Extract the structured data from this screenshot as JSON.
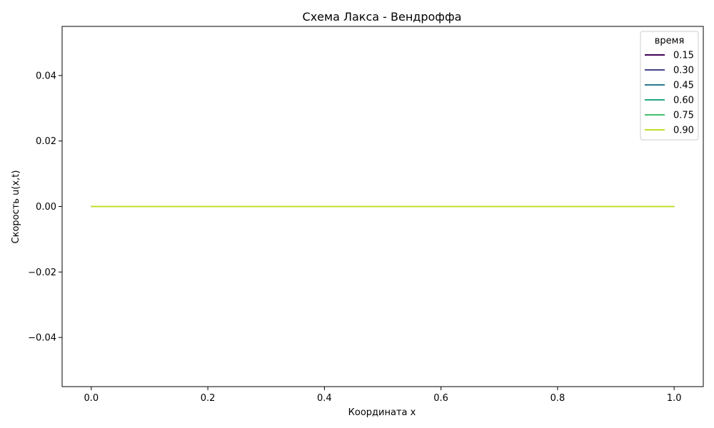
{
  "chart_data": {
    "type": "line",
    "title": "Схема Лакса - Вендроффа",
    "xlabel": "Координата x",
    "ylabel": "Скорость u(x,t)",
    "xlim": [
      -0.05,
      1.05
    ],
    "ylim": [
      -0.055,
      0.055
    ],
    "xticks": [
      0.0,
      0.2,
      0.4,
      0.6,
      0.8,
      1.0
    ],
    "xtick_labels": [
      "0.0",
      "0.2",
      "0.4",
      "0.6",
      "0.8",
      "1.0"
    ],
    "yticks": [
      -0.04,
      -0.02,
      0.0,
      0.02,
      0.04
    ],
    "ytick_labels": [
      "−0.04",
      "−0.02",
      "0.00",
      "0.02",
      "0.04"
    ],
    "grid": false,
    "legend": {
      "title": "время",
      "placement": "top-right"
    },
    "series": [
      {
        "name": "0.15",
        "color": "#440154",
        "x": [
          0.0,
          1.0
        ],
        "y": [
          0.0,
          0.0
        ]
      },
      {
        "name": "0.30",
        "color": "#414487",
        "x": [
          0.0,
          1.0
        ],
        "y": [
          0.0,
          0.0
        ]
      },
      {
        "name": "0.45",
        "color": "#2a788e",
        "x": [
          0.0,
          1.0
        ],
        "y": [
          0.0,
          0.0
        ]
      },
      {
        "name": "0.60",
        "color": "#22a884",
        "x": [
          0.0,
          1.0
        ],
        "y": [
          0.0,
          0.0
        ]
      },
      {
        "name": "0.75",
        "color": "#44bf70",
        "x": [
          0.0,
          1.0
        ],
        "y": [
          0.0,
          0.0
        ]
      },
      {
        "name": "0.90",
        "color": "#bddf26",
        "x": [
          0.0,
          1.0
        ],
        "y": [
          0.0,
          0.0
        ]
      }
    ]
  }
}
